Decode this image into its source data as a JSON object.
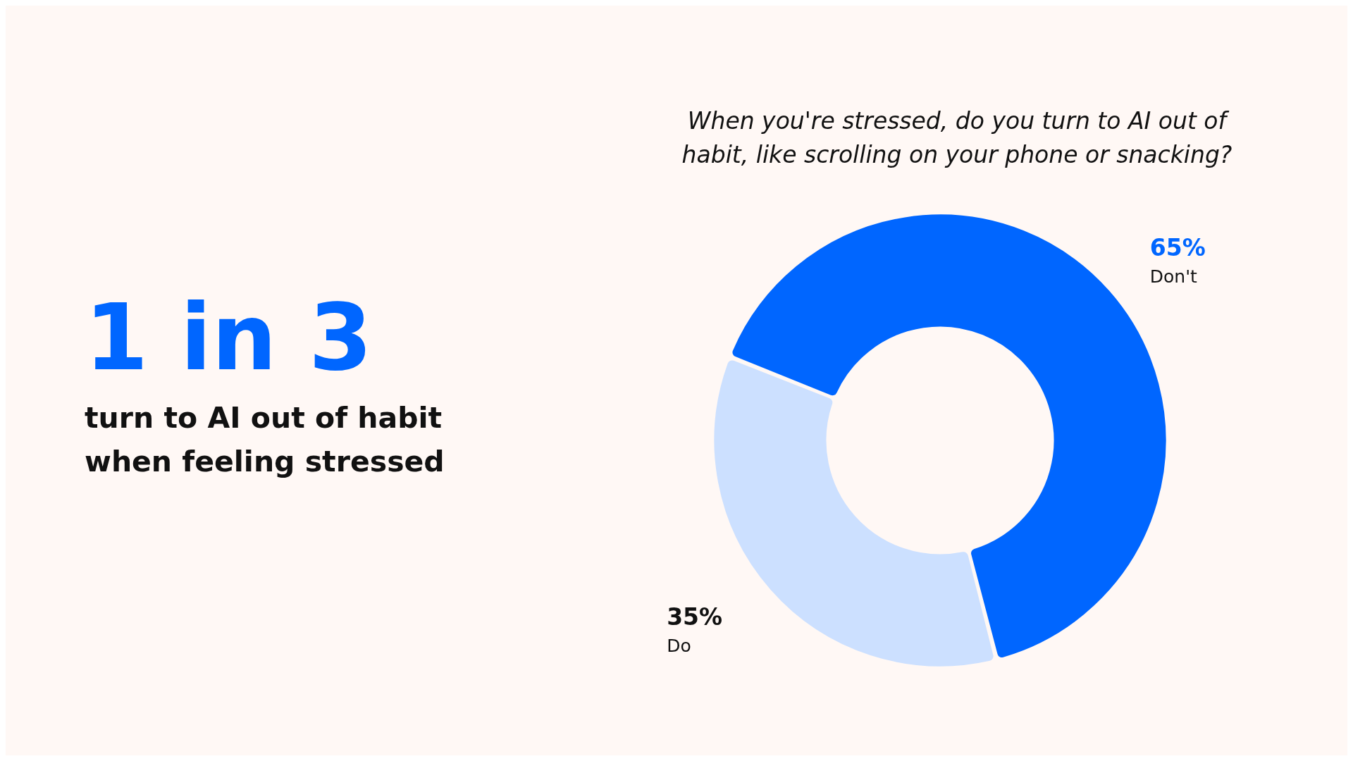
{
  "chart_data": {
    "type": "donut",
    "title": "When you're stressed, do you turn to AI out of habit, like scrolling on your phone or snacking?",
    "categories": [
      "Don't",
      "Do"
    ],
    "values": [
      65,
      35
    ],
    "colors": [
      "#0066ff",
      "#cce0ff"
    ],
    "value_labels": [
      "65%",
      "35%"
    ],
    "annotations": [
      "1 in 3",
      "turn to AI out of habit when feeling stressed"
    ],
    "legend": false
  }
}
